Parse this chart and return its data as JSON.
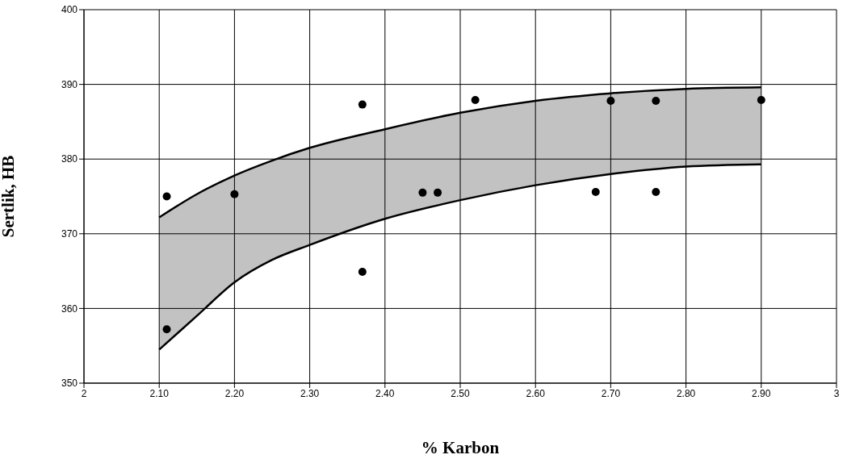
{
  "chart_data": {
    "type": "scatter",
    "xlabel": "% Karbon",
    "ylabel": "Sertlik, HB",
    "xlim": [
      2,
      3
    ],
    "xticks": [
      2,
      {
        "value": 2.1,
        "label": "2.10"
      },
      {
        "value": 2.2,
        "label": "2.20"
      },
      {
        "value": 2.3,
        "label": "2.30"
      },
      {
        "value": 2.4,
        "label": "2.40"
      },
      {
        "value": 2.5,
        "label": "2.50"
      },
      {
        "value": 2.6,
        "label": "2.60"
      },
      {
        "value": 2.7,
        "label": "2.70"
      },
      {
        "value": 2.8,
        "label": "2.80"
      },
      {
        "value": 2.9,
        "label": "2.90"
      },
      3
    ],
    "ylim": [
      350,
      400
    ],
    "yticks": [
      350,
      360,
      370,
      380,
      390,
      400
    ],
    "grid": true,
    "legend": false,
    "marker": "circle",
    "series": [
      {
        "type": "line",
        "color": "#000000",
        "marker": "none",
        "x": [
          2.1,
          2.15,
          2.2,
          2.25,
          2.3,
          2.4,
          2.5,
          2.6,
          2.7,
          2.8,
          2.9
        ],
        "values": [
          354.5,
          359,
          363.5,
          366.5,
          368.5,
          372,
          374.5,
          376.5,
          378,
          379,
          379.3
        ]
      },
      {
        "type": "line",
        "color": "#000000",
        "marker": "none",
        "x": [
          2.1,
          2.15,
          2.2,
          2.25,
          2.3,
          2.4,
          2.5,
          2.6,
          2.7,
          2.8,
          2.9
        ],
        "values": [
          372.2,
          375.3,
          377.8,
          379.8,
          381.5,
          384,
          386.2,
          387.8,
          388.8,
          389.4,
          389.6
        ],
        "lower": [
          354.5,
          359,
          363.5,
          366.5,
          368.5,
          372,
          374.5,
          376.5,
          378,
          379,
          379.3
        ],
        "upper": [
          372.2,
          375.3,
          377.8,
          379.8,
          381.5,
          384,
          386.2,
          387.8,
          388.8,
          389.4,
          389.6
        ]
      },
      {
        "color": "#000000",
        "x": [
          2.11,
          2.11,
          2.2,
          2.37,
          2.37,
          2.45,
          2.47,
          2.52,
          2.68,
          2.7,
          2.76,
          2.76,
          2.9
        ],
        "values": [
          375,
          357.2,
          375.3,
          387.3,
          364.9,
          375.5,
          375.5,
          387.9,
          375.6,
          387.8,
          387.8,
          375.6,
          387.9
        ]
      }
    ]
  }
}
